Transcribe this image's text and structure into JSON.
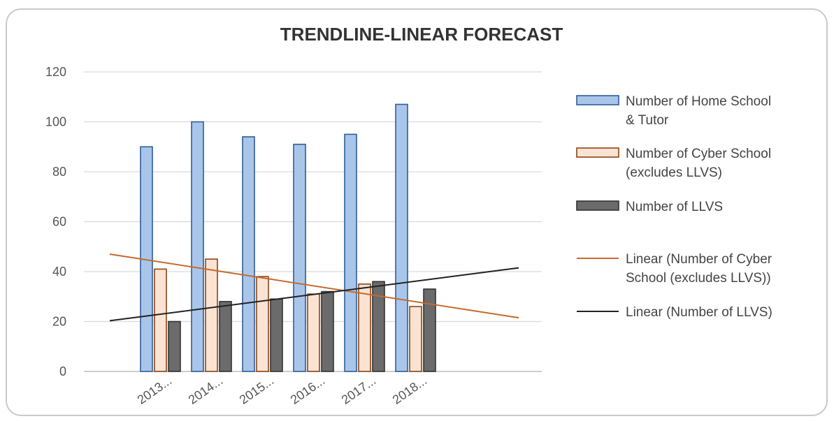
{
  "chart_data": {
    "type": "bar",
    "title": "TRENDLINE-LINEAR  FORECAST",
    "categories": [
      "2013...",
      "2014...",
      "2015...",
      "2016...",
      "2017...",
      "2018..."
    ],
    "yticks": [
      "0",
      "20",
      "40",
      "60",
      "80",
      "100",
      "120"
    ],
    "ylim": [
      0,
      120
    ],
    "grid": true,
    "legend_position": "right",
    "series": [
      {
        "name": "Number of Home School & Tutor",
        "legend_lines": [
          "Number of Home School",
          "& Tutor"
        ],
        "values": [
          90,
          100,
          94,
          91,
          95,
          107
        ],
        "fill": "#a9c6ea",
        "stroke": "#2f5d98"
      },
      {
        "name": "Number of Cyber School (excludes LLVS)",
        "legend_lines": [
          "Number of Cyber School",
          "(excludes LLVS)"
        ],
        "values": [
          41,
          45,
          38,
          31,
          35,
          26
        ],
        "fill": "#fbe3d3",
        "stroke": "#8b4513"
      },
      {
        "name": "Number of LLVS",
        "legend_lines": [
          "Number of LLVS"
        ],
        "values": [
          20,
          28,
          29,
          32,
          36,
          33
        ],
        "fill": "#6b6b6b",
        "stroke": "#333333"
      }
    ],
    "trendlines": [
      {
        "name": "Linear (Number of Cyber School (excludes LLVS))",
        "legend_lines": [
          "Linear (Number of Cyber",
          "School (excludes LLVS))"
        ],
        "start": 47,
        "end": 21.5,
        "color": "#c56a2d"
      },
      {
        "name": "Linear (Number of LLVS)",
        "legend_lines": [
          "Linear (Number of LLVS)"
        ],
        "start": 20.3,
        "end": 41.5,
        "color": "#222222"
      }
    ]
  }
}
